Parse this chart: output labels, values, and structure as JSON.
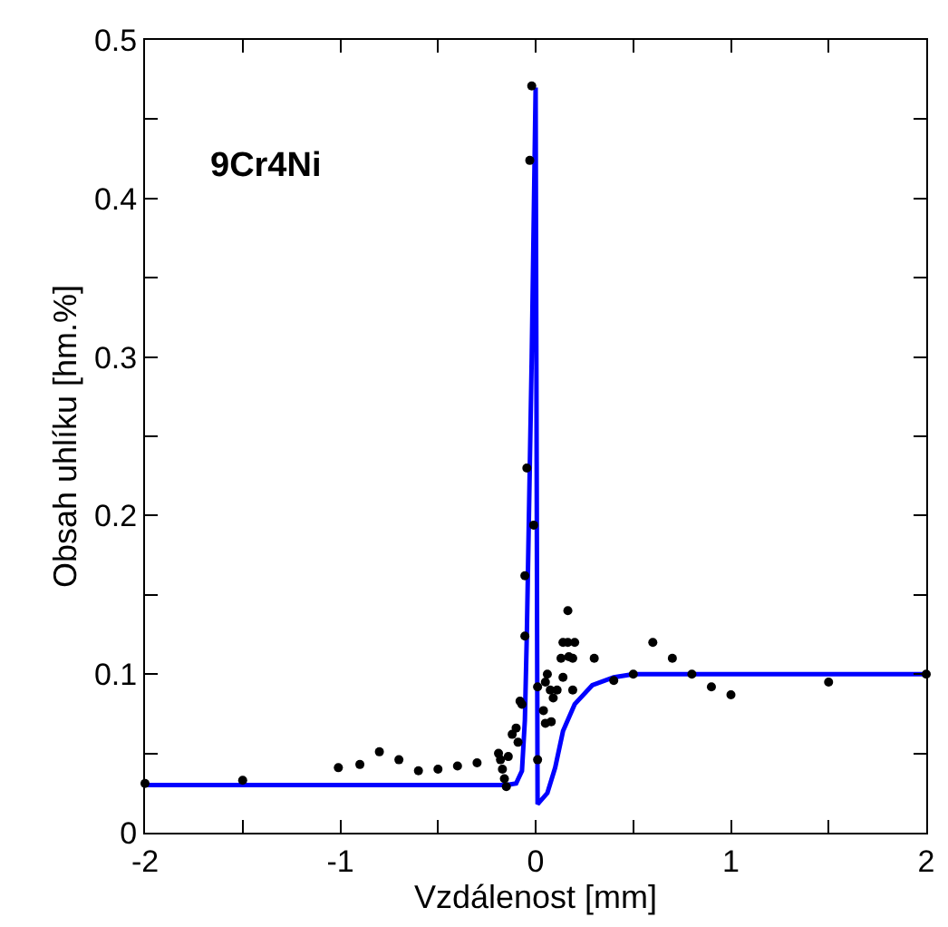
{
  "chart_data": {
    "type": "scatter",
    "xlabel": "Vzdálenost [mm]",
    "ylabel": "Obsah uhlíku [hm.%]",
    "annotations": [
      "9Cr4Ni"
    ],
    "xlim": [
      -2,
      2
    ],
    "ylim": [
      0,
      0.5
    ],
    "xticks": [
      -2,
      {
        "value": -1.5,
        "label": null
      },
      -1,
      {
        "value": -0.5,
        "label": null
      },
      0,
      {
        "value": 0.5,
        "label": null
      },
      1,
      {
        "value": 1.5,
        "label": null
      },
      2
    ],
    "yticks": [
      0,
      {
        "value": 0.05,
        "label": null
      },
      0.1,
      {
        "value": 0.15,
        "label": null
      },
      0.2,
      {
        "value": 0.25,
        "label": null
      },
      0.3,
      {
        "value": 0.35,
        "label": null
      },
      0.4,
      {
        "value": 0.45,
        "label": null
      },
      0.5
    ],
    "grid": false,
    "legend": false,
    "series": [
      {
        "marker": "circle",
        "color": "#000000",
        "x": [
          -2,
          -1.5,
          -1.01,
          -0.9,
          -0.8,
          -0.7,
          -0.6,
          -0.5,
          -0.4,
          -0.3,
          -0.19,
          -0.18,
          -0.17,
          -0.16,
          -0.15,
          -0.14,
          -0.12,
          -0.1,
          -0.09,
          -0.08,
          -0.07,
          -0.055,
          -0.055,
          -0.045,
          -0.03,
          -0.02,
          -0.01,
          0.01,
          0.01,
          0.04,
          0.05,
          0.05,
          0.06,
          0.075,
          0.08,
          0.09,
          0.11,
          0.13,
          0.14,
          0.14,
          0.165,
          0.165,
          0.17,
          0.19,
          0.19,
          0.2,
          0.3,
          0.4,
          0.5,
          0.6,
          0.7,
          0.8,
          0.9,
          1.0,
          1.5,
          2.0
        ],
        "values": [
          0.031,
          0.033,
          0.041,
          0.043,
          0.051,
          0.046,
          0.039,
          0.04,
          0.042,
          0.044,
          0.05,
          0.046,
          0.04,
          0.034,
          0.029,
          0.048,
          0.062,
          0.066,
          0.057,
          0.083,
          0.081,
          0.124,
          0.162,
          0.23,
          0.424,
          0.471,
          0.194,
          0.092,
          0.046,
          0.077,
          0.095,
          0.069,
          0.1,
          0.09,
          0.07,
          0.085,
          0.09,
          0.11,
          0.12,
          0.098,
          0.14,
          0.12,
          0.111,
          0.11,
          0.09,
          0.12,
          0.11,
          0.096,
          0.1,
          0.12,
          0.11,
          0.1,
          0.092,
          0.087,
          0.095,
          0.1
        ]
      },
      {
        "type": "line",
        "marker": "none",
        "line_style": "solid",
        "color": "#0000ff",
        "x": [
          -2,
          -0.15,
          -0.1,
          -0.07,
          -0.055,
          -0.045,
          -0.02,
          0,
          0.01,
          0.06,
          0.1,
          0.14,
          0.2,
          0.29,
          0.4,
          0.5,
          2
        ],
        "values": [
          0.03,
          0.03,
          0.031,
          0.039,
          0.071,
          0.125,
          0.3,
          0.47,
          0.018,
          0.025,
          0.041,
          0.064,
          0.081,
          0.093,
          0.098,
          0.1,
          0.1
        ]
      }
    ]
  }
}
